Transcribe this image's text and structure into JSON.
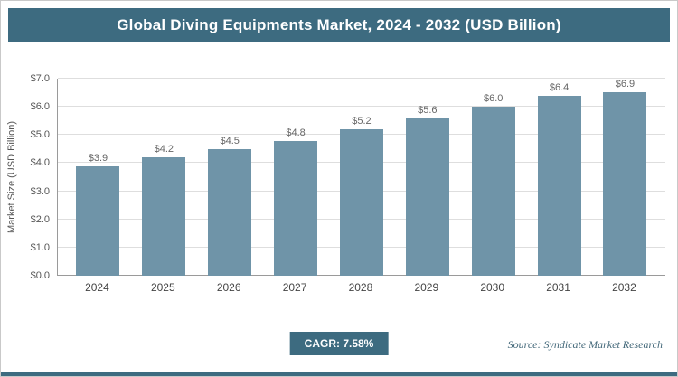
{
  "chart_data": {
    "type": "bar",
    "title": "Global Diving Equipments Market, 2024 - 2032 (USD Billion)",
    "categories": [
      "2024",
      "2025",
      "2026",
      "2027",
      "2028",
      "2029",
      "2030",
      "2031",
      "2032"
    ],
    "values": [
      3.9,
      4.2,
      4.5,
      4.8,
      5.2,
      5.6,
      6.0,
      6.4,
      6.9
    ],
    "xlabel": "",
    "ylabel": "Market Size (USD Billion)",
    "ylim": [
      0,
      7
    ],
    "ytick_step": 1,
    "ytick_prefix": "$",
    "value_label_prefix": "$",
    "grid": true,
    "legend": "none",
    "bar_color": "#6f94a8"
  },
  "footer": {
    "cagr_label": "CAGR: 7.58%",
    "source": "Source: Syndicate Market Research"
  },
  "colors": {
    "accent": "#3d6b80",
    "bar": "#6f94a8",
    "gridline": "#dedede"
  }
}
